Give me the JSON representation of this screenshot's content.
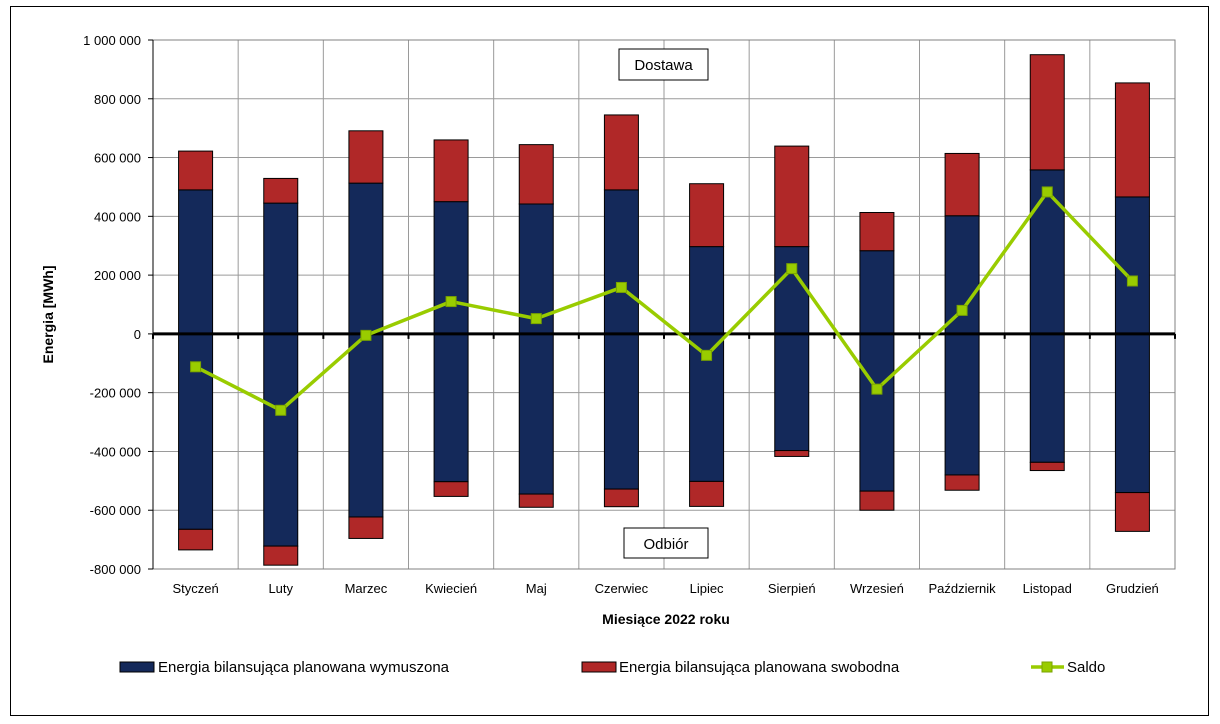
{
  "chart_data": {
    "type": "bar",
    "stacked": true,
    "categories": [
      "Styczeń",
      "Luty",
      "Marzec",
      "Kwiecień",
      "Maj",
      "Czerwiec",
      "Lipiec",
      "Sierpień",
      "Wrzesień",
      "Październik",
      "Listopad",
      "Grudzień"
    ],
    "series": [
      {
        "name": "Energia bilansująca planowana wymuszona",
        "kind": "bar",
        "color": "#14295a",
        "positive": [
          490000,
          445000,
          513000,
          450000,
          442000,
          490000,
          297000,
          297000,
          283000,
          402000,
          558000,
          466000
        ],
        "negative": [
          -665000,
          -722000,
          -623000,
          -503000,
          -545000,
          -528000,
          -502000,
          -397000,
          -535000,
          -480000,
          -437000,
          -540000
        ]
      },
      {
        "name": "Energia bilansująca planowana swobodna",
        "kind": "bar",
        "color": "#b02828",
        "positive": [
          132000,
          84000,
          178000,
          210000,
          202000,
          255000,
          214000,
          342000,
          130000,
          212000,
          392000,
          388000
        ],
        "negative": [
          -70000,
          -65000,
          -73000,
          -50000,
          -45000,
          -60000,
          -85000,
          -20000,
          -65000,
          -52000,
          -28000,
          -132000
        ]
      },
      {
        "name": "Saldo",
        "kind": "line",
        "color": "#99cc00",
        "values": [
          -112000,
          -260000,
          -5000,
          110000,
          52000,
          158000,
          -73000,
          222000,
          -188000,
          80000,
          483000,
          180000
        ]
      }
    ],
    "xlabel": "Miesiące  2022 roku",
    "ylabel": "Energia [MWh]",
    "ylim": [
      -800000,
      1000000
    ],
    "yticks": [
      -800000,
      -600000,
      -400000,
      -200000,
      0,
      200000,
      400000,
      600000,
      800000,
      1000000
    ],
    "ytick_labels": [
      "-800 000",
      "-600 000",
      "-400 000",
      "-200 000",
      "0",
      "200 000",
      "400 000",
      "600 000",
      "800 000",
      "1 000 000"
    ],
    "grid": true,
    "legend": "bottom",
    "annotations": [
      "Dostawa",
      "Odbiór"
    ]
  }
}
